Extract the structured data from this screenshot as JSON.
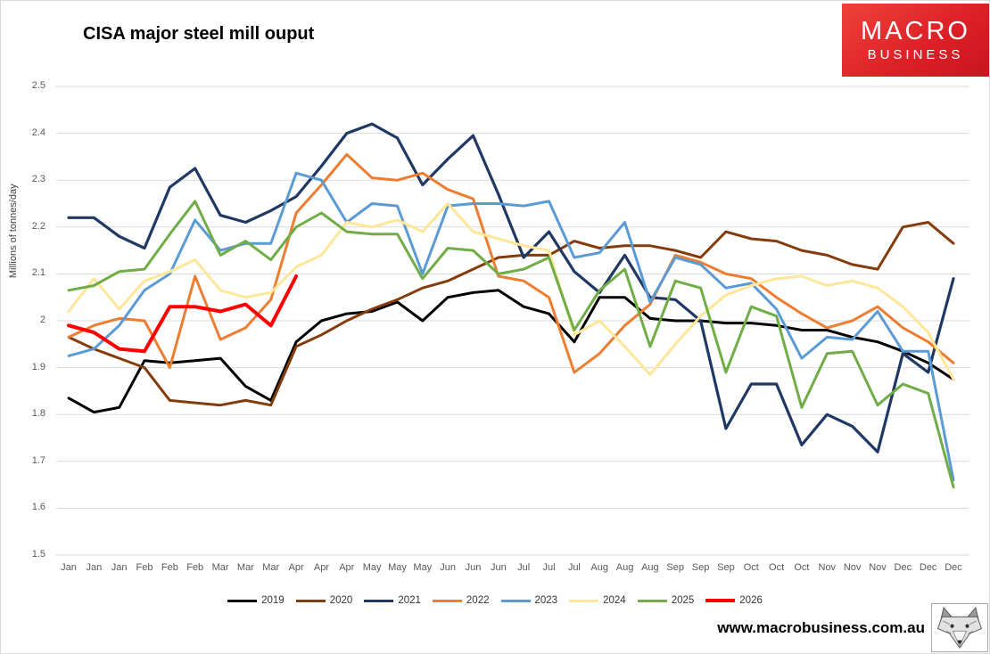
{
  "chart": {
    "title": "CISA major steel mill ouput",
    "y_axis_title": "Millions of tonnes/day"
  },
  "logo": {
    "line1": "MACRO",
    "line2": "BUSINESS",
    "bg_color": "#dc1f26"
  },
  "footer": {
    "url": "www.macrobusiness.com.au",
    "icon": "fox-head-icon"
  },
  "chart_data": {
    "type": "line",
    "title": "CISA major steel mill ouput",
    "xlabel": "",
    "ylabel": "Millions of tonnes/day",
    "ylim": [
      1.5,
      2.5
    ],
    "grid": true,
    "legend_position": "bottom",
    "y_tick_labels": [
      "2.5",
      "2.4",
      "2.3",
      "2.2",
      "2.1",
      "2",
      "1.9",
      "1.8",
      "1.7",
      "1.6",
      "1.5"
    ],
    "x": [
      "Jan",
      "Jan",
      "Jan",
      "Feb",
      "Feb",
      "Feb",
      "Mar",
      "Mar",
      "Mar",
      "Apr",
      "Apr",
      "Apr",
      "May",
      "May",
      "May",
      "Jun",
      "Jun",
      "Jun",
      "Jul",
      "Jul",
      "Jul",
      "Aug",
      "Aug",
      "Aug",
      "Sep",
      "Sep",
      "Sep",
      "Oct",
      "Oct",
      "Oct",
      "Nov",
      "Nov",
      "Nov",
      "Dec",
      "Dec",
      "Dec"
    ],
    "series": [
      {
        "name": "2019",
        "color": "#000000",
        "width": 3,
        "values": [
          1.835,
          1.805,
          1.815,
          1.915,
          1.91,
          1.915,
          1.92,
          1.86,
          1.83,
          1.955,
          2.0,
          2.015,
          2.02,
          2.04,
          2.0,
          2.05,
          2.06,
          2.065,
          2.03,
          2.015,
          1.955,
          2.05,
          2.05,
          2.005,
          2.0,
          2.0,
          1.995,
          1.995,
          1.99,
          1.98,
          1.98,
          1.965,
          1.955,
          1.935,
          1.91,
          1.875
        ]
      },
      {
        "name": "2020",
        "color": "#843C0C",
        "width": 3,
        "values": [
          1.965,
          1.94,
          1.92,
          1.9,
          1.83,
          1.825,
          1.82,
          1.83,
          1.82,
          1.945,
          1.97,
          2.0,
          2.025,
          2.045,
          2.07,
          2.085,
          2.11,
          2.135,
          2.14,
          2.14,
          2.17,
          2.155,
          2.16,
          2.16,
          2.15,
          2.135,
          2.19,
          2.175,
          2.17,
          2.15,
          2.14,
          2.12,
          2.11,
          2.2,
          2.21,
          2.165
        ]
      },
      {
        "name": "2021",
        "color": "#1F3864",
        "width": 3.2,
        "values": [
          2.22,
          2.22,
          2.18,
          2.155,
          2.285,
          2.325,
          2.225,
          2.21,
          2.235,
          2.265,
          2.33,
          2.4,
          2.42,
          2.39,
          2.29,
          2.345,
          2.395,
          2.27,
          2.135,
          2.19,
          2.105,
          2.06,
          2.14,
          2.05,
          2.045,
          2.0,
          1.77,
          1.865,
          1.865,
          1.735,
          1.8,
          1.775,
          1.72,
          1.93,
          1.89,
          2.09
        ]
      },
      {
        "name": "2022",
        "color": "#ED7D31",
        "width": 3,
        "values": [
          1.965,
          1.99,
          2.005,
          2.0,
          1.9,
          2.095,
          1.96,
          1.985,
          2.045,
          2.23,
          2.29,
          2.355,
          2.305,
          2.3,
          2.315,
          2.28,
          2.26,
          2.095,
          2.085,
          2.05,
          1.89,
          1.93,
          1.99,
          2.035,
          2.14,
          2.125,
          2.1,
          2.09,
          2.05,
          2.015,
          1.985,
          2.0,
          2.03,
          1.985,
          1.955,
          1.91
        ]
      },
      {
        "name": "2023",
        "color": "#5B9BD5",
        "width": 3,
        "values": [
          1.925,
          1.94,
          1.99,
          2.065,
          2.1,
          2.215,
          2.15,
          2.165,
          2.165,
          2.315,
          2.3,
          2.21,
          2.25,
          2.245,
          2.1,
          2.245,
          2.25,
          2.25,
          2.245,
          2.255,
          2.135,
          2.145,
          2.21,
          2.04,
          2.135,
          2.12,
          2.07,
          2.08,
          2.025,
          1.92,
          1.965,
          1.96,
          2.02,
          1.935,
          1.935,
          1.66
        ]
      },
      {
        "name": "2024",
        "color": "#FFE699",
        "width": 3,
        "values": [
          2.02,
          2.09,
          2.025,
          2.085,
          2.105,
          2.13,
          2.065,
          2.05,
          2.06,
          2.115,
          2.14,
          2.21,
          2.2,
          2.215,
          2.19,
          2.25,
          2.19,
          2.175,
          2.16,
          2.15,
          1.97,
          2.0,
          1.945,
          1.885,
          1.95,
          2.01,
          2.055,
          2.075,
          2.09,
          2.095,
          2.075,
          2.085,
          2.07,
          2.03,
          1.975,
          1.875
        ]
      },
      {
        "name": "2025",
        "color": "#70AD47",
        "width": 3,
        "values": [
          2.065,
          2.075,
          2.105,
          2.11,
          2.185,
          2.255,
          2.14,
          2.17,
          2.13,
          2.2,
          2.23,
          2.19,
          2.185,
          2.185,
          2.09,
          2.155,
          2.15,
          2.1,
          2.11,
          2.135,
          1.98,
          2.065,
          2.11,
          1.945,
          2.085,
          2.07,
          1.89,
          2.03,
          2.01,
          1.815,
          1.93,
          1.935,
          1.82,
          1.865,
          1.845,
          1.645
        ]
      },
      {
        "name": "2026",
        "color": "#FF0000",
        "width": 4,
        "values": [
          1.99,
          1.975,
          1.94,
          1.935,
          2.03,
          2.03,
          2.02,
          2.035,
          1.99,
          2.095
        ]
      }
    ]
  }
}
